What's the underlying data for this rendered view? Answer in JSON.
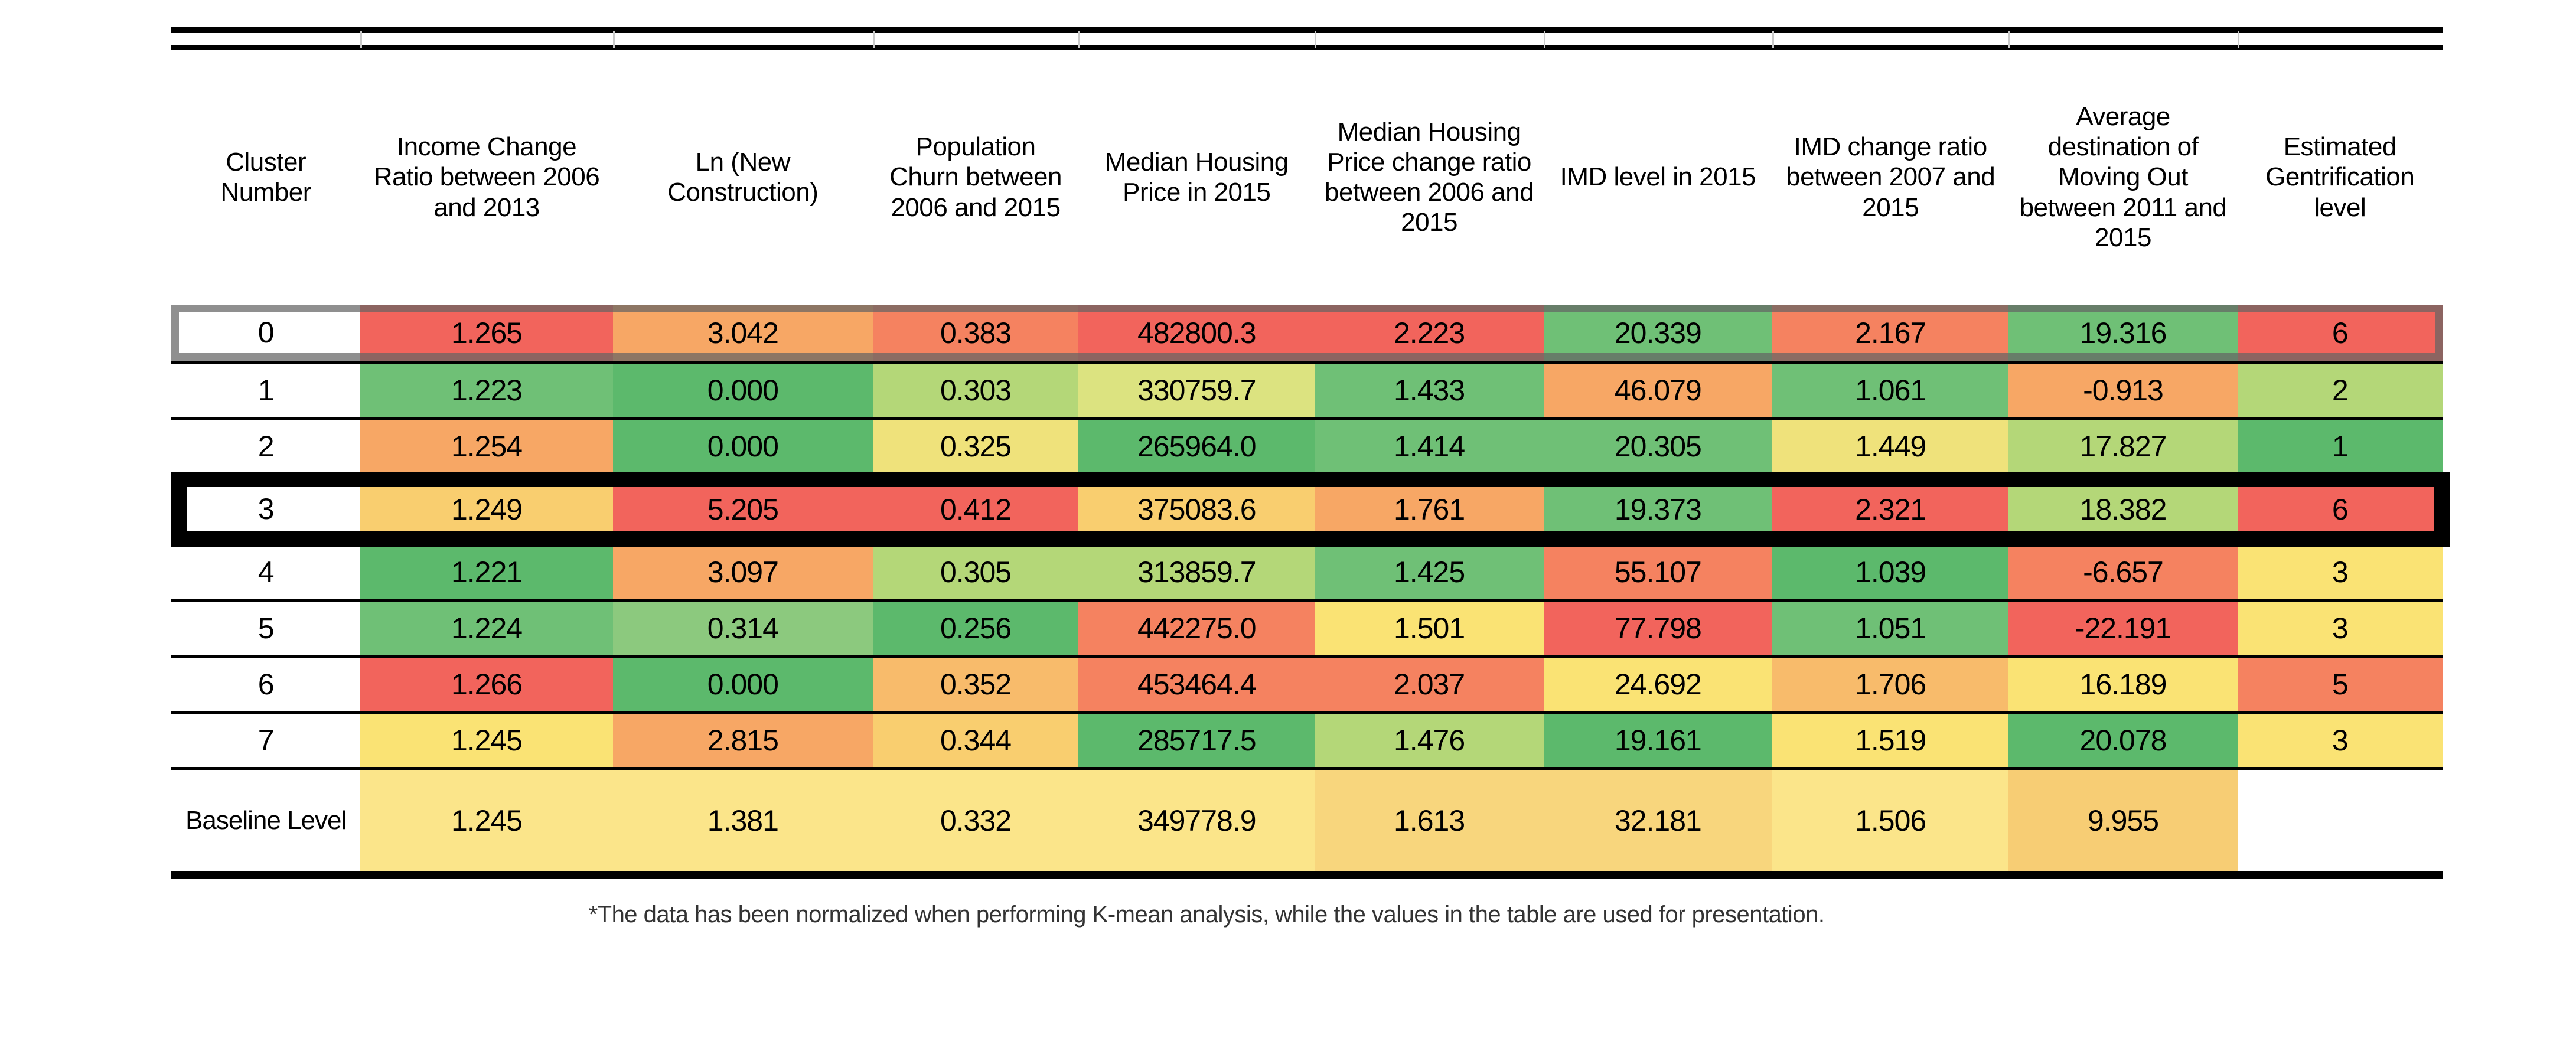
{
  "table": {
    "columns": [
      "Cluster Number",
      "Income Change Ratio between 2006 and 2013",
      "Ln (New Construction)",
      "Population Churn between 2006 and 2015",
      "Median Housing Price in 2015",
      "Median Housing Price change ratio between 2006 and 2015",
      "IMD level in 2015",
      "IMD change ratio between 2007 and 2015",
      "Average destination of Moving Out between 2011 and 2015",
      "Estimated Gentrification level"
    ],
    "rows": [
      {
        "cluster": "0",
        "highlight": "gray",
        "values": [
          "1.265",
          "3.042",
          "0.383",
          "482800.3",
          "2.223",
          "20.339",
          "2.167",
          "19.316",
          "6"
        ],
        "colors": [
          "red",
          "orange",
          "salmon",
          "red",
          "red",
          "mgreen",
          "salmon",
          "mgreen",
          "red"
        ]
      },
      {
        "cluster": "1",
        "highlight": "",
        "values": [
          "1.223",
          "0.000",
          "0.303",
          "330759.7",
          "1.433",
          "46.079",
          "1.061",
          "-0.913",
          "2"
        ],
        "colors": [
          "mgreen",
          "green",
          "lgreen",
          "ygreen",
          "mgreen",
          "orange",
          "mgreen",
          "orange",
          "lgreen"
        ]
      },
      {
        "cluster": "2",
        "highlight": "",
        "values": [
          "1.254",
          "0.000",
          "0.325",
          "265964.0",
          "1.414",
          "20.305",
          "1.449",
          "17.827",
          "1"
        ],
        "colors": [
          "orange",
          "green",
          "yellow2",
          "green",
          "mgreen",
          "mgreen",
          "yellow2",
          "lgreen",
          "green"
        ]
      },
      {
        "cluster": "3",
        "highlight": "black",
        "values": [
          "1.249",
          "5.205",
          "0.412",
          "375083.6",
          "1.761",
          "19.373",
          "2.321",
          "18.382",
          "6"
        ],
        "colors": [
          "yorange",
          "red",
          "red",
          "yorange",
          "orange",
          "mgreen",
          "red",
          "lgreen",
          "red"
        ]
      },
      {
        "cluster": "4",
        "highlight": "",
        "values": [
          "1.221",
          "3.097",
          "0.305",
          "313859.7",
          "1.425",
          "55.107",
          "1.039",
          "-6.657",
          "3"
        ],
        "colors": [
          "green",
          "orange",
          "lgreen",
          "lgreen",
          "mgreen",
          "salmon",
          "green",
          "salmon",
          "yellow"
        ]
      },
      {
        "cluster": "5",
        "highlight": "",
        "values": [
          "1.224",
          "0.314",
          "0.256",
          "442275.0",
          "1.501",
          "77.798",
          "1.051",
          "-22.191",
          "3"
        ],
        "colors": [
          "mgreen",
          "lgreen2",
          "green",
          "salmon",
          "yellow",
          "red",
          "mgreen",
          "red",
          "yellow"
        ]
      },
      {
        "cluster": "6",
        "highlight": "",
        "values": [
          "1.266",
          "0.000",
          "0.352",
          "453464.4",
          "2.037",
          "24.692",
          "1.706",
          "16.189",
          "5"
        ],
        "colors": [
          "red",
          "green",
          "lorange",
          "salmon",
          "salmon",
          "yellow",
          "lorange",
          "yellow",
          "salmon"
        ]
      },
      {
        "cluster": "7",
        "highlight": "",
        "values": [
          "1.245",
          "2.815",
          "0.344",
          "285717.5",
          "1.476",
          "19.161",
          "1.519",
          "20.078",
          "3"
        ],
        "colors": [
          "yellow",
          "orange",
          "yorange",
          "green",
          "lgreen",
          "green",
          "yellow",
          "green",
          "yellow"
        ]
      },
      {
        "cluster": "Baseline Level",
        "highlight": "",
        "values": [
          "1.245",
          "1.381",
          "0.332",
          "349778.9",
          "1.613",
          "32.181",
          "1.506",
          "9.955",
          ""
        ],
        "colors": [
          "byellow",
          "byellow",
          "byellow",
          "byellow",
          "bdyellow",
          "bdyellow",
          "byellow",
          "borange",
          "white"
        ]
      }
    ],
    "footnote": "*The data has been normalized when performing K-mean analysis, while the values in the table are used for presentation."
  },
  "palette": {
    "red": "#F2645C",
    "salmon": "#F58260",
    "orange": "#F7A765",
    "lorange": "#F8BB6B",
    "yorange": "#F9CE6F",
    "yellow": "#FAE374",
    "yellow2": "#EFE27B",
    "ygreen": "#DCE380",
    "lgreen": "#B4D778",
    "lgreen2": "#8CC97E",
    "mgreen": "#6FC076",
    "green": "#5CB96C",
    "byellow": "#FBE58A",
    "bdyellow": "#F8D67D",
    "borange": "#F7CD74",
    "white": "#FFFFFF",
    "gray_highlight": "#9B9B9B",
    "black_highlight": "#000000"
  }
}
